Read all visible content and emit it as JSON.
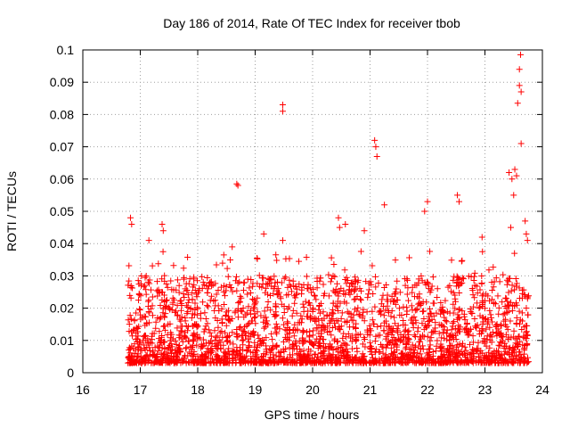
{
  "chart_data": {
    "type": "scatter",
    "title": "Day 186 of 2014, Rate Of TEC Index for receiver tbob",
    "xlabel": "GPS time / hours",
    "ylabel": "ROTI / TECUs",
    "xlim": [
      16,
      24
    ],
    "ylim": [
      0,
      0.1
    ],
    "xticks": [
      "16",
      "17",
      "18",
      "19",
      "20",
      "21",
      "22",
      "23",
      "24"
    ],
    "yticks": [
      "0",
      "0.01",
      "0.02",
      "0.03",
      "0.04",
      "0.05",
      "0.06",
      "0.07",
      "0.08",
      "0.09",
      "0.1"
    ],
    "grid": true,
    "marker": "plus",
    "color": "#ff0000",
    "series": [
      {
        "name": "ROTI",
        "x_range": [
          16.78,
          23.76
        ],
        "typical_range": [
          0.003,
          0.03
        ],
        "notable_points": [
          [
            16.83,
            0.048
          ],
          [
            16.85,
            0.046
          ],
          [
            17.38,
            0.046
          ],
          [
            17.4,
            0.044
          ],
          [
            17.15,
            0.041
          ],
          [
            18.68,
            0.0585
          ],
          [
            18.7,
            0.058
          ],
          [
            18.6,
            0.039
          ],
          [
            19.15,
            0.043
          ],
          [
            19.48,
            0.083
          ],
          [
            19.48,
            0.081
          ],
          [
            19.48,
            0.041
          ],
          [
            20.45,
            0.048
          ],
          [
            20.47,
            0.045
          ],
          [
            20.57,
            0.046
          ],
          [
            20.9,
            0.044
          ],
          [
            21.08,
            0.072
          ],
          [
            21.1,
            0.07
          ],
          [
            21.12,
            0.067
          ],
          [
            21.25,
            0.052
          ],
          [
            21.95,
            0.05
          ],
          [
            22.0,
            0.053
          ],
          [
            22.52,
            0.055
          ],
          [
            22.55,
            0.053
          ],
          [
            22.95,
            0.042
          ],
          [
            23.42,
            0.062
          ],
          [
            23.47,
            0.06
          ],
          [
            23.52,
            0.063
          ],
          [
            23.55,
            0.061
          ],
          [
            23.57,
            0.0835
          ],
          [
            23.6,
            0.089
          ],
          [
            23.6,
            0.094
          ],
          [
            23.62,
            0.0985
          ],
          [
            23.63,
            0.087
          ],
          [
            23.63,
            0.071
          ],
          [
            23.7,
            0.047
          ],
          [
            23.72,
            0.043
          ],
          [
            23.74,
            0.041
          ],
          [
            23.5,
            0.055
          ],
          [
            23.45,
            0.045
          ]
        ]
      }
    ]
  }
}
